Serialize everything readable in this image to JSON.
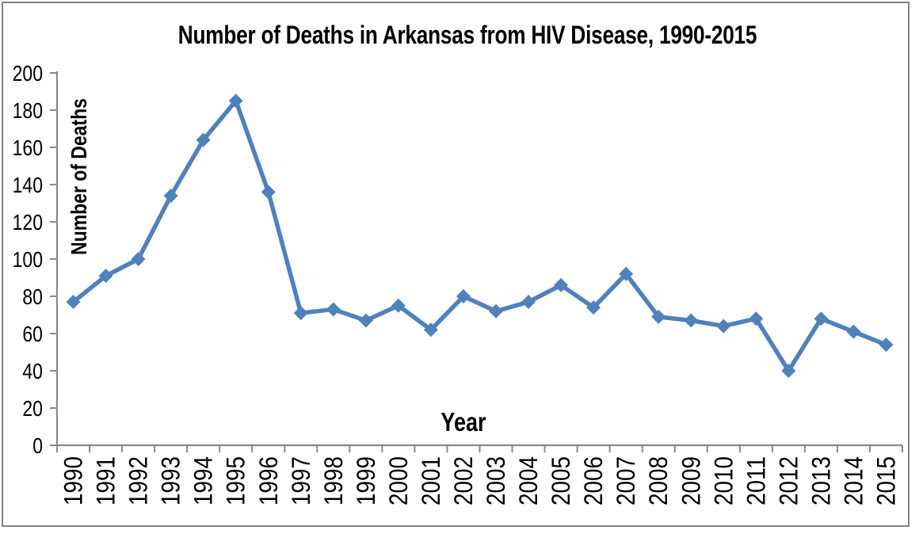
{
  "chart_data": {
    "type": "line",
    "title": "Number of Deaths in Arkansas from HIV Disease, 1990-2015",
    "xlabel": "Year",
    "ylabel": "Number of Deaths",
    "categories": [
      "1990",
      "1991",
      "1992",
      "1993",
      "1994",
      "1995",
      "1996",
      "1997",
      "1998",
      "1999",
      "2000",
      "2001",
      "2002",
      "2003",
      "2004",
      "2005",
      "2006",
      "2007",
      "2008",
      "2009",
      "2010",
      "2011",
      "2012",
      "2013",
      "2014",
      "2015"
    ],
    "values": [
      77,
      91,
      100,
      134,
      164,
      185,
      136,
      71,
      73,
      67,
      75,
      62,
      80,
      72,
      77,
      86,
      74,
      92,
      69,
      67,
      64,
      68,
      40,
      68,
      61,
      54
    ],
    "ylim": [
      0,
      200
    ],
    "ytick_interval": 20,
    "grid": false,
    "legend": "none",
    "line_color": "#4F81BD",
    "marker": "diamond",
    "axis_color": "#8A8A8A",
    "text_color": "#000000",
    "background": "#FFFFFF",
    "border_color": "#828282"
  }
}
